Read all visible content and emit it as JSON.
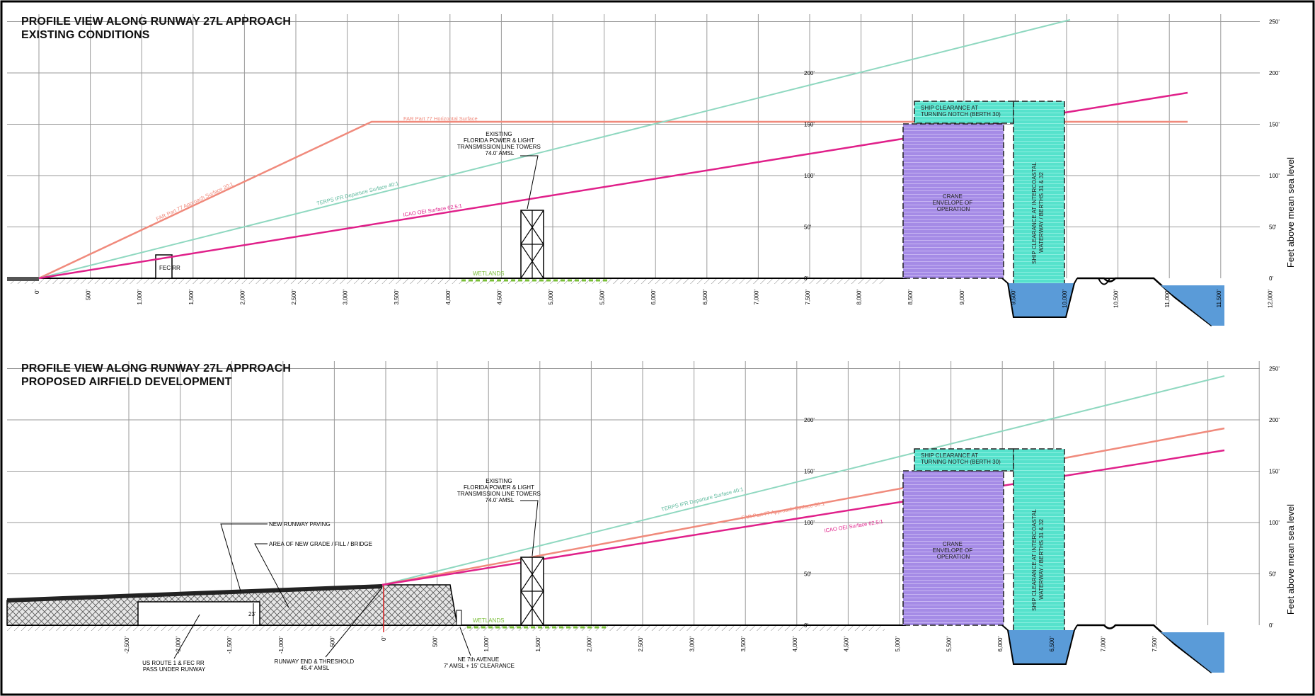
{
  "top": {
    "title_line1": "PROFILE VIEW ALONG RUNWAY 27L APPROACH",
    "title_line2": "EXISTING CONDITIONS",
    "x_ticks": [
      "0'",
      "500'",
      "1,000'",
      "1,500'",
      "2,000'",
      "2,500'",
      "3,000'",
      "3,500'",
      "4,000'",
      "4,500'",
      "5,000'",
      "5,500'",
      "6,000'",
      "6,500'",
      "7,000'",
      "7,500'",
      "8,000'",
      "8,500'",
      "9,000'",
      "9,500'",
      "10,000'",
      "10,500'",
      "11,000'",
      "11,500'",
      "12,000'"
    ],
    "y_ticks_right": [
      "0'",
      "50'",
      "100'",
      "150'",
      "200'",
      "250'"
    ],
    "y_ticks_mid": [
      "0'",
      "50'",
      "100'",
      "150'",
      "200'"
    ],
    "y_axis_label": "Feet above mean sea level",
    "labels": {
      "far_horizontal": "FAR Part 77 Horizontal Surface",
      "far_approach": "FAR Part 77 Approach Surface 20:1",
      "terps": "TERPS IFR Departure Surface 40:1",
      "icao": "ICAO OEI Surface 62.5:1",
      "fec_rr": "FEC RR",
      "wetlands": "WETLANDS",
      "towers": [
        "EXISTING",
        "FLORIDA POWER & LIGHT",
        "TRANSMISSION LINE TOWERS",
        "74.0' AMSL"
      ],
      "crane": [
        "CRANE",
        "ENVELOPE OF",
        "OPERATION"
      ],
      "ship_notch": [
        "SHIP CLEARANCE AT",
        "TURNING NOTCH (BERTH 30)"
      ],
      "ship_intercoastal": [
        "SHIP CLEARANCE AT INTERCOASTAL",
        "WATERWAY / BERTHS 31 & 32"
      ]
    }
  },
  "bottom": {
    "title_line1": "PROFILE VIEW ALONG RUNWAY 27L APPROACH",
    "title_line2": "PROPOSED AIRFIELD DEVELOPMENT",
    "x_ticks": [
      "-2,500'",
      "-2,000'",
      "-1,500'",
      "-1,000'",
      "-500'",
      "0'",
      "500'",
      "1,000'",
      "1,500'",
      "2,000'",
      "2,500'",
      "3,000'",
      "3,500'",
      "4,000'",
      "4,500'",
      "5,000'",
      "5,500'",
      "6,000'",
      "6,500'",
      "7,000'",
      "7,500'"
    ],
    "y_ticks_right": [
      "0'",
      "50'",
      "100'",
      "150'",
      "200'",
      "250'"
    ],
    "y_ticks_mid": [
      "0'",
      "50'",
      "100'",
      "150'",
      "200'"
    ],
    "y_axis_label": "Feet above mean sea level",
    "labels": {
      "new_paving": "NEW RUNWAY PAVING",
      "new_grade": "AREA OF NEW GRADE / FILL / BRIDGE",
      "clearance": "23'",
      "us_route": [
        "US ROUTE 1 & FEC RR",
        "PASS UNDER RUNWAY"
      ],
      "rwy_end": [
        "RUNWAY END & THRESHOLD",
        "45.4' AMSL"
      ],
      "ne7th": [
        "NE 7th AVENUE",
        "7' AMSL + 15' CLEARANCE"
      ],
      "terps": "TERPS IFR Departure Surface 40:1",
      "far_approach": "FAR Part 77 Approach Surface 50:1",
      "icao": "ICAO OEI Surface 62.5:1",
      "wetlands": "WETLANDS",
      "towers": [
        "EXISTING",
        "FLORIDA POWER & LIGHT",
        "TRANSMISSION LINE TOWERS",
        "74.0' AMSL"
      ],
      "crane": [
        "CRANE",
        "ENVELOPE OF",
        "OPERATION"
      ],
      "ship_notch": [
        "SHIP CLEARANCE AT",
        "TURNING NOTCH (BERTH 30)"
      ],
      "ship_intercoastal": [
        "SHIP CLEARANCE AT INTERCOASTAL",
        "WATERWAY / BERTHS 31 & 32"
      ]
    }
  },
  "colors": {
    "grid": "#9a9a9a",
    "far": "#f08a7c",
    "terps": "#8fd8c0",
    "icao": "#e0208a",
    "crane": "#a58be6",
    "ship": "#56e2cc",
    "water": "#5a9bd8",
    "wetlands": "#7bbf3a"
  }
}
